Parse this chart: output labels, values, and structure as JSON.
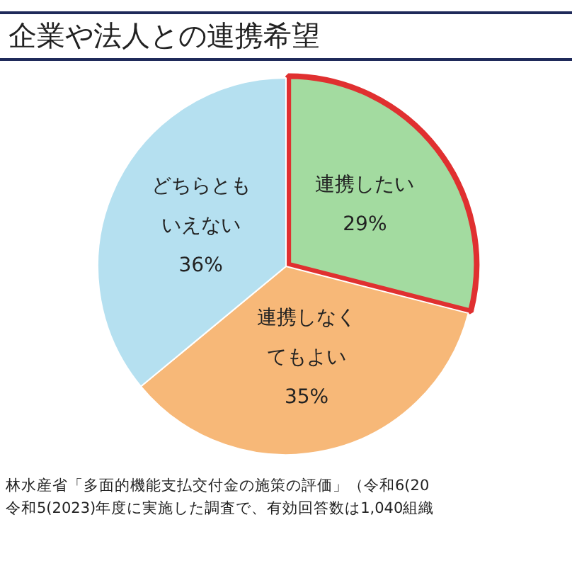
{
  "chart_data": {
    "type": "pie",
    "title": "企業や法人との連携希望",
    "categories": [
      "連携したい",
      "連携しなくてもよい",
      "どちらともいえない"
    ],
    "values": [
      29,
      35,
      36
    ],
    "colors": [
      "#a3dba0",
      "#f7b878",
      "#b5e0f0"
    ],
    "value_labels": [
      "29%",
      "35%",
      "36%"
    ],
    "legend": false,
    "annotations": [
      "林水産省「多面的機能支払交付金の施策の評価」（令和6(20",
      "令和5(2023)年度に実施した調査で、有効回答数は1,040組織"
    ]
  }
}
